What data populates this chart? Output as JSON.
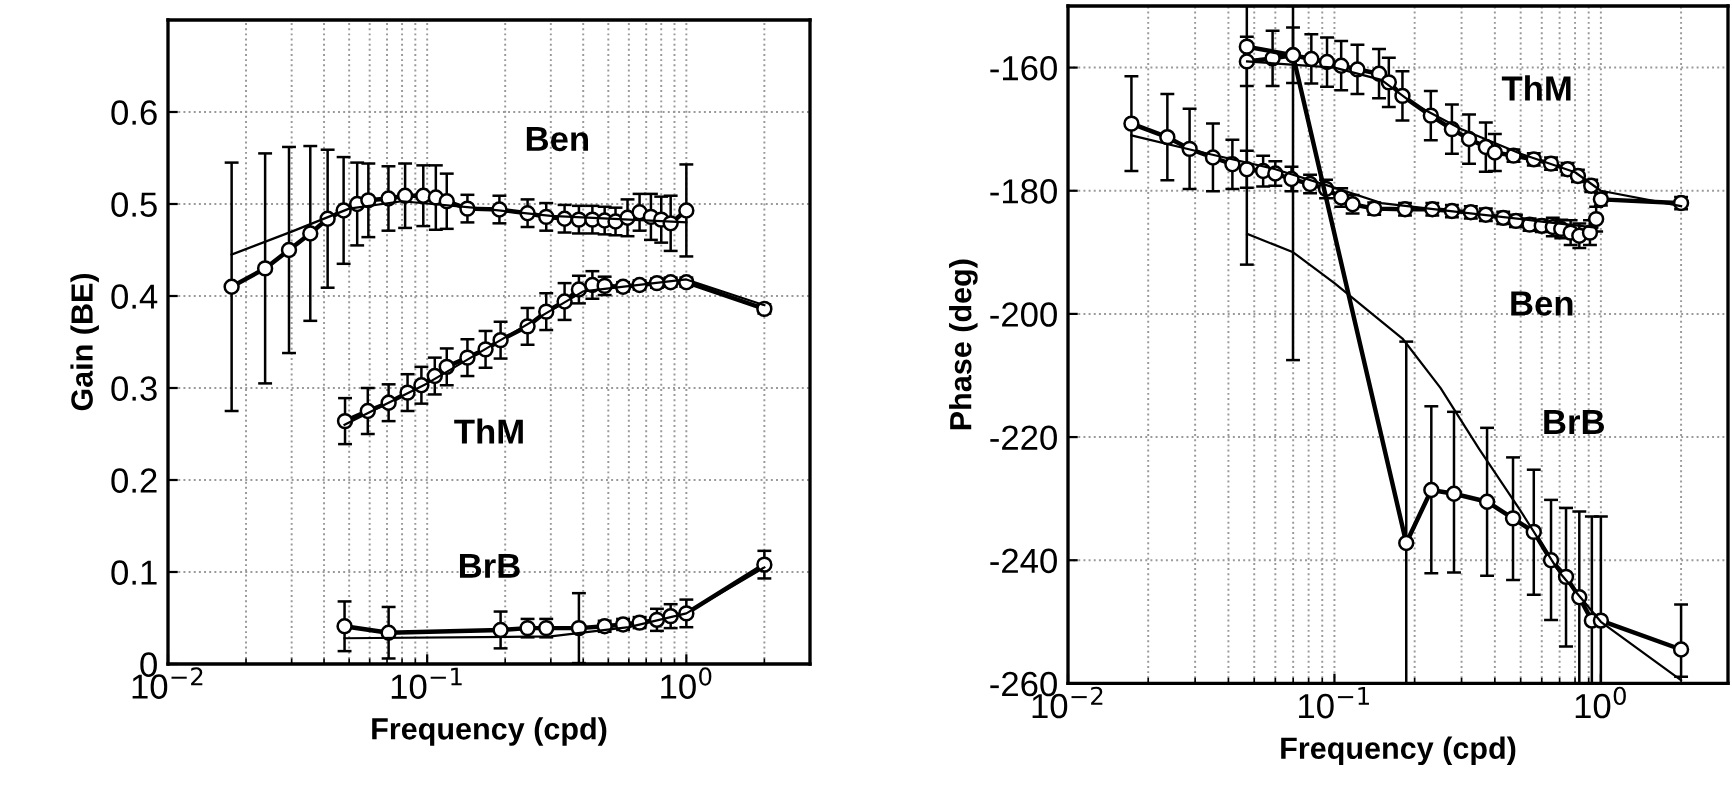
{
  "chart_data": [
    {
      "type": "line",
      "xlabel": "Frequency (cpd)",
      "ylabel": "Gain (BE)",
      "log": "x",
      "grid": true,
      "xlim": [
        0.01,
        3
      ],
      "ylim": [
        0,
        0.7
      ],
      "xticks": [
        {
          "value": 0.01,
          "label": "10$^{−2}$"
        },
        {
          "value": 0.1,
          "label": "10$^{−1}$"
        },
        {
          "value": 1,
          "label": "10$^{0}$"
        }
      ],
      "yticks": [
        0,
        0.1,
        0.2,
        0.3,
        0.4,
        0.5,
        0.6
      ],
      "series": [
        {
          "name": "Ben",
          "color": "#000000",
          "marker": "circle",
          "x": [
            0.0176,
            0.0237,
            0.0293,
            0.0354,
            0.0413,
            0.0476,
            0.0537,
            0.0593,
            0.0709,
            0.0822,
            0.0966,
            0.108,
            0.119,
            0.143,
            0.19,
            0.244,
            0.288,
            0.339,
            0.385,
            0.434,
            0.484,
            0.533,
            0.593,
            0.66,
            0.73,
            0.8,
            0.87,
            1.0
          ],
          "values": [
            0.41,
            0.43,
            0.45,
            0.468,
            0.484,
            0.493,
            0.5,
            0.504,
            0.506,
            0.509,
            0.509,
            0.507,
            0.503,
            0.495,
            0.494,
            0.49,
            0.486,
            0.484,
            0.483,
            0.483,
            0.482,
            0.481,
            0.485,
            0.491,
            0.486,
            0.483,
            0.479,
            0.493
          ],
          "errors": [
            0.135,
            0.125,
            0.112,
            0.095,
            0.075,
            0.058,
            0.045,
            0.04,
            0.035,
            0.035,
            0.033,
            0.035,
            0.03,
            0.015,
            0.015,
            0.015,
            0.015,
            0.015,
            0.015,
            0.015,
            0.015,
            0.015,
            0.02,
            0.02,
            0.025,
            0.025,
            0.03,
            0.05
          ]
        },
        {
          "color": "#000000",
          "marker": "none",
          "x": [
            0.0176,
            0.03,
            0.05,
            0.08,
            0.15,
            0.3,
            1.0
          ],
          "values": [
            0.445,
            0.47,
            0.495,
            0.503,
            0.496,
            0.487,
            0.48
          ]
        },
        {
          "name": "ThM",
          "color": "#000000",
          "marker": "circle",
          "x": [
            0.0482,
            0.059,
            0.071,
            0.084,
            0.095,
            0.107,
            0.119,
            0.143,
            0.168,
            0.192,
            0.244,
            0.288,
            0.339,
            0.385,
            0.434,
            0.484,
            0.57,
            0.66,
            0.77,
            0.87,
            1.0,
            2
          ],
          "values": [
            0.264,
            0.275,
            0.284,
            0.295,
            0.303,
            0.313,
            0.323,
            0.333,
            0.342,
            0.352,
            0.367,
            0.383,
            0.394,
            0.407,
            0.412,
            0.411,
            0.41,
            0.412,
            0.414,
            0.415,
            0.415,
            0.386
          ],
          "errors": [
            0.025,
            0.025,
            0.02,
            0.02,
            0.02,
            0.02,
            0.02,
            0.02,
            0.02,
            0.02,
            0.02,
            0.02,
            0.02,
            0.015,
            0.015,
            0.01,
            0.005,
            0.005,
            0.005,
            0.005,
            0.005,
            0.005
          ]
        },
        {
          "color": "#000000",
          "marker": "none",
          "x": [
            0.048,
            0.1,
            0.2,
            0.4,
            1.0,
            2
          ],
          "values": [
            0.26,
            0.305,
            0.355,
            0.405,
            0.418,
            0.39
          ]
        },
        {
          "name": "BrB",
          "color": "#000000",
          "marker": "circle",
          "x": [
            0.048,
            0.071,
            0.192,
            0.244,
            0.288,
            0.385,
            0.484,
            0.57,
            0.66,
            0.77,
            0.87,
            1.0,
            2
          ],
          "values": [
            0.041,
            0.034,
            0.037,
            0.039,
            0.039,
            0.039,
            0.041,
            0.043,
            0.045,
            0.048,
            0.052,
            0.055,
            0.108
          ],
          "errors": [
            0.027,
            0.028,
            0.02,
            0.01,
            0.01,
            0.038,
            0.006,
            0.006,
            0.006,
            0.012,
            0.013,
            0.015,
            0.015
          ]
        },
        {
          "color": "#000000",
          "marker": "none",
          "x": [
            0.048,
            0.3,
            0.6,
            1.0,
            2
          ],
          "values": [
            0.028,
            0.03,
            0.04,
            0.055,
            0.105
          ]
        }
      ]
    },
    {
      "type": "line",
      "xlabel": "Frequency (cpd)",
      "ylabel": "Phase (deg)",
      "log": "x",
      "grid": true,
      "xlim": [
        0.01,
        3
      ],
      "ylim": [
        -260,
        -150
      ],
      "xticks": [
        {
          "value": 0.01,
          "label": "10$^{−2}$"
        },
        {
          "value": 0.1,
          "label": "10$^{−1}$"
        },
        {
          "value": 1,
          "label": "10$^{0}$"
        }
      ],
      "yticks": [
        -260,
        -240,
        -220,
        -200,
        -180,
        -160
      ],
      "series": [
        {
          "name": "ThM",
          "color": "#000000",
          "marker": "circle",
          "x": [
            0.0469,
            0.0586,
            0.0699,
            0.0819,
            0.0938,
            0.106,
            0.122,
            0.147,
            0.16,
            0.18,
            0.23,
            0.276,
            0.32,
            0.37,
            0.4,
            0.47,
            0.56,
            0.65,
            0.75,
            0.82,
            0.92,
            1.0,
            2
          ],
          "values": [
            -159,
            -158.5,
            -158,
            -158.6,
            -159.1,
            -159.7,
            -160.3,
            -161,
            -162.4,
            -164.6,
            -167.8,
            -170,
            -171.6,
            -172.9,
            -173.8,
            -174.3,
            -174.9,
            -175.6,
            -176.5,
            -177.6,
            -179.2,
            -181.4,
            -182
          ],
          "errors": [
            4,
            4.5,
            4.5,
            4,
            4,
            4,
            4,
            4,
            4,
            4,
            4,
            4,
            4,
            4,
            3,
            1,
            1,
            1,
            1,
            1,
            1,
            1,
            1
          ]
        },
        {
          "color": "#000000",
          "marker": "none",
          "x": [
            0.047,
            0.1,
            0.15,
            0.2,
            0.3,
            0.5,
            0.8,
            1.0,
            2
          ],
          "values": [
            -159,
            -160,
            -162,
            -166,
            -170,
            -174,
            -177,
            -180,
            -182.5
          ]
        },
        {
          "name": "Ben",
          "color": "#000000",
          "marker": "circle",
          "x": [
            0.0173,
            0.0236,
            0.0286,
            0.035,
            0.0414,
            0.0469,
            0.054,
            0.06,
            0.069,
            0.081,
            0.093,
            0.106,
            0.117,
            0.141,
            0.184,
            0.233,
            0.276,
            0.325,
            0.37,
            0.43,
            0.48,
            0.54,
            0.6,
            0.66,
            0.71,
            0.77,
            0.83,
            0.91,
            0.96
          ],
          "values": [
            -169.1,
            -171.3,
            -173.2,
            -174.6,
            -175.7,
            -176.5,
            -176.8,
            -177.2,
            -178.1,
            -178.9,
            -179.7,
            -181.1,
            -182.2,
            -182.9,
            -183,
            -183,
            -183.3,
            -183.5,
            -183.9,
            -184.4,
            -184.9,
            -185.5,
            -185.7,
            -185.9,
            -186.2,
            -186.8,
            -187.3,
            -186.8,
            -184.6
          ],
          "errors": [
            7.7,
            7,
            6.5,
            5.5,
            4,
            3,
            2.5,
            2,
            2,
            1.5,
            1.5,
            1.5,
            1.5,
            1,
            1,
            1,
            1,
            1,
            1,
            1,
            1,
            1,
            1,
            1.5,
            1.5,
            2,
            2,
            2,
            2
          ]
        },
        {
          "color": "#000000",
          "marker": "none",
          "x": [
            0.0173,
            0.03,
            0.06,
            0.1,
            0.15,
            0.3,
            0.6,
            0.97
          ],
          "values": [
            -171,
            -173.5,
            -176.5,
            -179.5,
            -182,
            -183.5,
            -185,
            -186
          ]
        },
        {
          "name": "BrB",
          "color": "#000000",
          "marker": "circle",
          "x": [
            0.0469,
            0.0699,
            0.186,
            0.231,
            0.281,
            0.374,
            0.468,
            0.56,
            0.65,
            0.74,
            0.83,
            0.925,
            1.0,
            2
          ],
          "values": [
            -156.6,
            -158,
            -237.2,
            -228.6,
            -229.2,
            -230.5,
            -233.2,
            -235.4,
            -240,
            -242.7,
            -246,
            -249.8,
            -249.8,
            -254.5
          ],
          "errors": [
            [
              -192,
              -150
            ],
            [
              -207.5,
              -150
            ],
            [
              -260,
              -204.5
            ],
            [
              -242.1,
              -215
            ],
            [
              -242,
              -215.9
            ],
            [
              -242.5,
              -218.5
            ],
            [
              -243.2,
              -223.3
            ],
            [
              -245.6,
              -225.3
            ],
            [
              -249.7,
              -230.2
            ],
            [
              -254,
              -231.5
            ],
            [
              -260,
              -232.1
            ],
            [
              -260,
              -232.9
            ],
            [
              -260,
              -232.9
            ],
            [
              -258.9,
              -247.2
            ]
          ]
        },
        {
          "color": "#000000",
          "marker": "none",
          "x": [
            0.047,
            0.07,
            0.1,
            0.18,
            0.25,
            0.35,
            0.5,
            0.7,
            1.0,
            2
          ],
          "values": [
            -187,
            -190,
            -195,
            -204,
            -212,
            -222,
            -232,
            -242,
            -250,
            -259.5
          ]
        }
      ]
    }
  ]
}
